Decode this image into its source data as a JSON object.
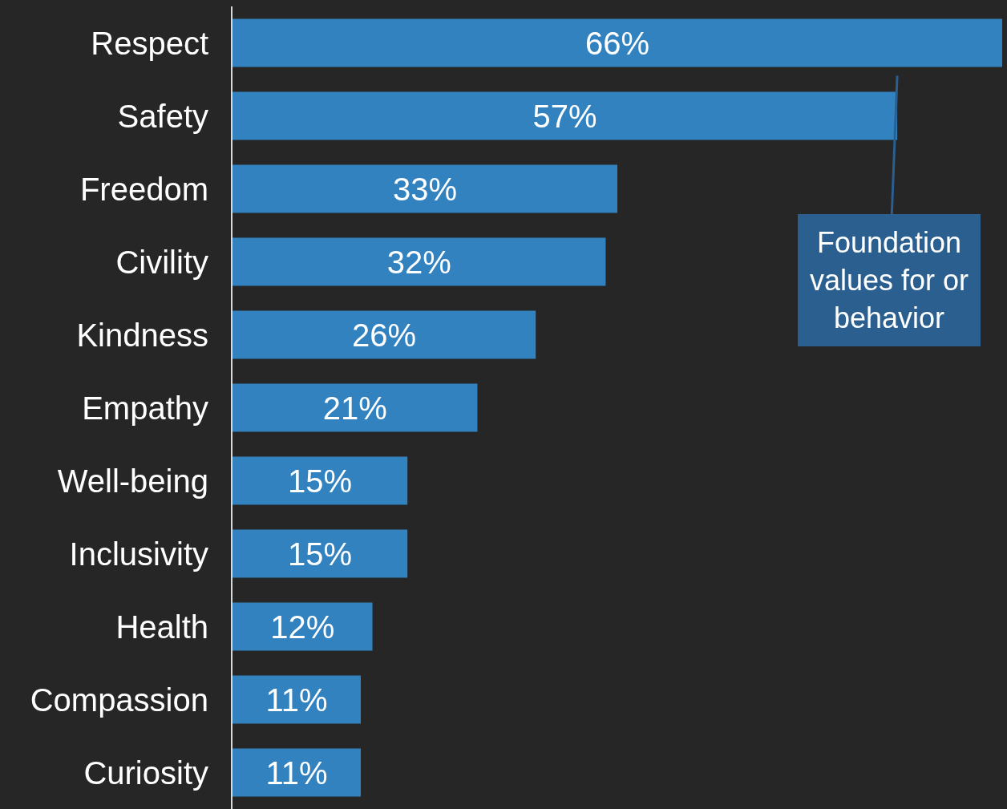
{
  "chart_data": {
    "type": "bar",
    "orientation": "horizontal",
    "categories": [
      "Respect",
      "Safety",
      "Freedom",
      "Civility",
      "Kindness",
      "Empathy",
      "Well-being",
      "Inclusivity",
      "Health",
      "Compassion",
      "Curiosity"
    ],
    "values": [
      66,
      57,
      33,
      32,
      26,
      21,
      15,
      15,
      12,
      11,
      11
    ],
    "value_labels": [
      "66%",
      "57%",
      "33%",
      "32%",
      "26%",
      "21%",
      "15%",
      "15%",
      "12%",
      "11%",
      "11%"
    ],
    "color": "#3282c0",
    "tick_labels": "y",
    "annotations": [
      "Foundation\nvalues for or\nbehavior"
    ]
  }
}
